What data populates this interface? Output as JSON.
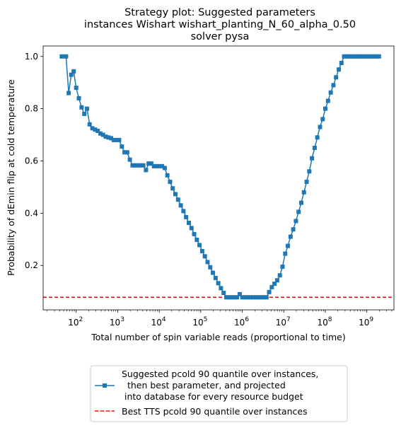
{
  "chart_data": {
    "type": "line",
    "title": [
      "Strategy plot: Suggested parameters",
      "instances Wishart wishart_planting_N_60_alpha_0.50",
      "solver pysa"
    ],
    "xlabel": "Total number of spin variable reads (proportional to time)",
    "ylabel": "Probability of dEmin flip at cold temperature",
    "xscale": "log",
    "xlim": [
      16,
      4500000000
    ],
    "ylim": [
      0.03,
      1.04
    ],
    "xticks": [
      {
        "value": 100,
        "mant": "10",
        "exp": "2"
      },
      {
        "value": 1000,
        "mant": "10",
        "exp": "3"
      },
      {
        "value": 10000,
        "mant": "10",
        "exp": "4"
      },
      {
        "value": 100000,
        "mant": "10",
        "exp": "5"
      },
      {
        "value": 1000000,
        "mant": "10",
        "exp": "6"
      },
      {
        "value": 10000000,
        "mant": "10",
        "exp": "7"
      },
      {
        "value": 100000000,
        "mant": "10",
        "exp": "8"
      },
      {
        "value": 1000000000,
        "mant": "10",
        "exp": "9"
      }
    ],
    "yticks": [
      "0.2",
      "0.4",
      "0.6",
      "0.8",
      "1.0"
    ],
    "legend_position": "below",
    "series": [
      {
        "name": "Suggested pcold 90 quantile over instances,\n  then best parameter, and projected\n into database for every resource budget",
        "color": "#1f77b4",
        "marker": "square",
        "line": "solid",
        "points": [
          [
            45,
            1.0
          ],
          [
            57,
            1.0
          ],
          [
            66,
            0.86
          ],
          [
            76,
            0.93
          ],
          [
            87,
            0.943
          ],
          [
            100,
            0.88
          ],
          [
            116,
            0.84
          ],
          [
            135,
            0.805
          ],
          [
            157,
            0.78
          ],
          [
            182,
            0.8
          ],
          [
            211,
            0.74
          ],
          [
            245,
            0.725
          ],
          [
            285,
            0.72
          ],
          [
            330,
            0.715
          ],
          [
            383,
            0.705
          ],
          [
            444,
            0.7
          ],
          [
            515,
            0.693
          ],
          [
            597,
            0.69
          ],
          [
            693,
            0.687
          ],
          [
            804,
            0.68
          ],
          [
            933,
            0.68
          ],
          [
            1080,
            0.68
          ],
          [
            1260,
            0.655
          ],
          [
            1460,
            0.633
          ],
          [
            1690,
            0.633
          ],
          [
            1960,
            0.605
          ],
          [
            2280,
            0.583
          ],
          [
            2640,
            0.583
          ],
          [
            3070,
            0.583
          ],
          [
            3560,
            0.583
          ],
          [
            4130,
            0.583
          ],
          [
            4790,
            0.565
          ],
          [
            5560,
            0.59
          ],
          [
            6450,
            0.59
          ],
          [
            7480,
            0.58
          ],
          [
            8680,
            0.58
          ],
          [
            10070,
            0.58
          ],
          [
            11680,
            0.58
          ],
          [
            13550,
            0.573
          ],
          [
            15720,
            0.545
          ],
          [
            18240,
            0.52
          ],
          [
            21160,
            0.495
          ],
          [
            24550,
            0.473
          ],
          [
            28480,
            0.452
          ],
          [
            33040,
            0.43
          ],
          [
            38330,
            0.408
          ],
          [
            44470,
            0.385
          ],
          [
            51590,
            0.363
          ],
          [
            59850,
            0.343
          ],
          [
            69430,
            0.32
          ],
          [
            80550,
            0.298
          ],
          [
            93450,
            0.278
          ],
          [
            108400,
            0.255
          ],
          [
            125800,
            0.235
          ],
          [
            145900,
            0.213
          ],
          [
            169300,
            0.193
          ],
          [
            196400,
            0.172
          ],
          [
            227800,
            0.152
          ],
          [
            264300,
            0.132
          ],
          [
            306600,
            0.113
          ],
          [
            355700,
            0.095
          ],
          [
            412700,
            0.078
          ],
          [
            478800,
            0.078
          ],
          [
            555400,
            0.078
          ],
          [
            644400,
            0.078
          ],
          [
            747500,
            0.078
          ],
          [
            867200,
            0.09
          ],
          [
            1006000,
            0.078
          ],
          [
            1167000,
            0.078
          ],
          [
            1354000,
            0.078
          ],
          [
            1571000,
            0.078
          ],
          [
            1822000,
            0.078
          ],
          [
            2114000,
            0.078
          ],
          [
            2452000,
            0.078
          ],
          [
            2845000,
            0.078
          ],
          [
            3300000,
            0.078
          ],
          [
            3829000,
            0.078
          ],
          [
            4442000,
            0.098
          ],
          [
            5153000,
            0.117
          ],
          [
            5978000,
            0.13
          ],
          [
            6935000,
            0.143
          ],
          [
            8045000,
            0.162
          ],
          [
            9333000,
            0.195
          ],
          [
            10830000,
            0.245
          ],
          [
            12560000,
            0.275
          ],
          [
            14570000,
            0.31
          ],
          [
            16900000,
            0.338
          ],
          [
            19610000,
            0.37
          ],
          [
            22750000,
            0.405
          ],
          [
            26390000,
            0.44
          ],
          [
            30610000,
            0.48
          ],
          [
            35510000,
            0.52
          ],
          [
            41200000,
            0.56
          ],
          [
            47800000,
            0.61
          ],
          [
            55450000,
            0.65
          ],
          [
            64320000,
            0.69
          ],
          [
            74620000,
            0.73
          ],
          [
            86570000,
            0.76
          ],
          [
            100400000,
            0.8
          ],
          [
            116500000,
            0.83
          ],
          [
            135200000,
            0.862
          ],
          [
            156800000,
            0.89
          ],
          [
            181900000,
            0.92
          ],
          [
            211100000,
            0.95
          ],
          [
            244900000,
            0.975
          ],
          [
            284100000,
            1.0
          ],
          [
            329600000,
            1.0
          ],
          [
            382300000,
            1.0
          ],
          [
            443600000,
            1.0
          ],
          [
            514600000,
            1.0
          ],
          [
            597000000,
            1.0
          ],
          [
            692600000,
            1.0
          ],
          [
            803500000,
            1.0
          ],
          [
            932100000,
            1.0
          ],
          [
            1081000000,
            1.0
          ],
          [
            1254000000,
            1.0
          ],
          [
            1455000000,
            1.0
          ],
          [
            1688000000,
            1.0
          ],
          [
            1958000000,
            1.0
          ]
        ]
      },
      {
        "name": "Best TTS pcold 90 quantile over instances",
        "color": "#ff0000",
        "line": "dashed",
        "y": 0.078
      }
    ]
  }
}
